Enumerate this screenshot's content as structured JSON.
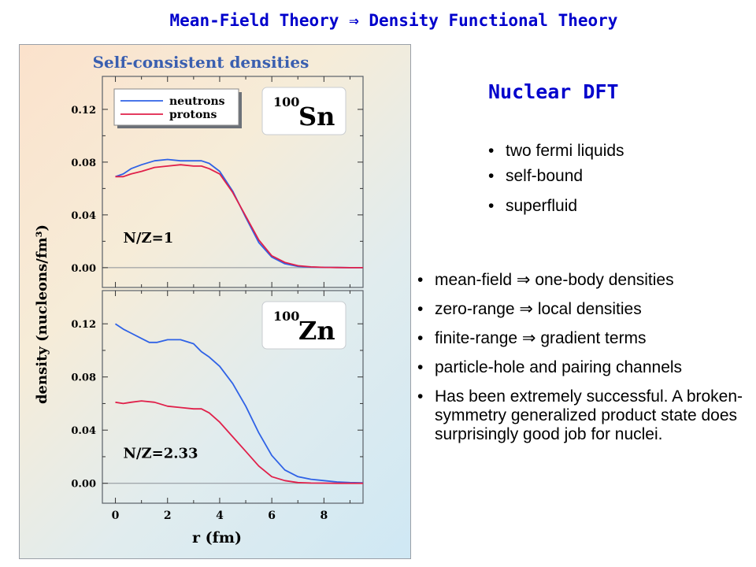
{
  "slide_title": "Mean-Field Theory ⇒ Density Functional Theory",
  "right": {
    "heading": "Nuclear DFT",
    "properties": [
      "two fermi liquids",
      "self-bound",
      "superfluid"
    ],
    "points": [
      "mean-field  ⇒ one-body densities",
      "zero-range ⇒ local densities",
      "finite-range ⇒ gradient terms",
      "particle-hole and pairing channels",
      "Has been extremely successful. A broken-symmetry generalized product state does surprisingly good job for nuclei."
    ]
  },
  "colors": {
    "neutrons": "#2f62e6",
    "protons": "#e0204a",
    "title_blue": "#0000cc"
  },
  "chart_data": [
    {
      "type": "line",
      "title": "Self-consistent densities",
      "nucleus_mass": "100",
      "nucleus_symbol": "Sn",
      "annotation": "N/Z=1",
      "xlabel": "r (fm)",
      "ylabel": "density (nucleons/fm³)",
      "xlim": [
        -0.5,
        9.5
      ],
      "ylim": [
        -0.015,
        0.145
      ],
      "yticks": [
        "0.00",
        "0.04",
        "0.08",
        "0.12"
      ],
      "legend_position": "top-left",
      "series": [
        {
          "name": "neutrons",
          "x": [
            0,
            0.3,
            0.6,
            1,
            1.5,
            2,
            2.5,
            3,
            3.3,
            3.6,
            4,
            4.5,
            5,
            5.5,
            6,
            6.5,
            7,
            7.5,
            8,
            8.5,
            9,
            9.5
          ],
          "y": [
            0.069,
            0.071,
            0.075,
            0.078,
            0.081,
            0.082,
            0.081,
            0.081,
            0.081,
            0.079,
            0.073,
            0.058,
            0.038,
            0.019,
            0.008,
            0.003,
            0.001,
            0.0004,
            0.0002,
            0.0001,
            0,
            0
          ]
        },
        {
          "name": "protons",
          "x": [
            0,
            0.3,
            0.6,
            1,
            1.5,
            2,
            2.5,
            3,
            3.3,
            3.6,
            4,
            4.5,
            5,
            5.5,
            6,
            6.5,
            7,
            7.5,
            8,
            8.5,
            9,
            9.5
          ],
          "y": [
            0.069,
            0.069,
            0.071,
            0.073,
            0.076,
            0.077,
            0.078,
            0.077,
            0.077,
            0.075,
            0.071,
            0.057,
            0.039,
            0.021,
            0.009,
            0.004,
            0.0015,
            0.0006,
            0.0002,
            0.0001,
            0,
            0
          ]
        }
      ]
    },
    {
      "type": "line",
      "nucleus_mass": "100",
      "nucleus_symbol": "Zn",
      "annotation": "N/Z=2.33",
      "xlabel": "r (fm)",
      "xlim": [
        -0.5,
        9.5
      ],
      "ylim": [
        -0.015,
        0.145
      ],
      "xticks": [
        "0",
        "2",
        "4",
        "6",
        "8"
      ],
      "yticks": [
        "0.00",
        "0.04",
        "0.08",
        "0.12"
      ],
      "series": [
        {
          "name": "neutrons",
          "x": [
            0,
            0.3,
            0.6,
            1,
            1.3,
            1.6,
            2,
            2.5,
            3,
            3.3,
            3.6,
            4,
            4.5,
            5,
            5.5,
            6,
            6.5,
            7,
            7.5,
            8,
            8.5,
            9,
            9.5
          ],
          "y": [
            0.12,
            0.116,
            0.113,
            0.109,
            0.106,
            0.106,
            0.108,
            0.108,
            0.105,
            0.099,
            0.095,
            0.088,
            0.075,
            0.058,
            0.038,
            0.021,
            0.01,
            0.005,
            0.003,
            0.002,
            0.001,
            0.0005,
            0.0003
          ]
        },
        {
          "name": "protons",
          "x": [
            0,
            0.3,
            0.6,
            1,
            1.5,
            2,
            2.5,
            3,
            3.3,
            3.6,
            4,
            4.5,
            5,
            5.5,
            6,
            6.5,
            7,
            7.5,
            8,
            8.5,
            9,
            9.5
          ],
          "y": [
            0.061,
            0.06,
            0.061,
            0.062,
            0.061,
            0.058,
            0.057,
            0.056,
            0.056,
            0.053,
            0.046,
            0.035,
            0.024,
            0.013,
            0.005,
            0.002,
            0.0005,
            0.0002,
            0.0001,
            0,
            0,
            0
          ]
        }
      ]
    }
  ]
}
